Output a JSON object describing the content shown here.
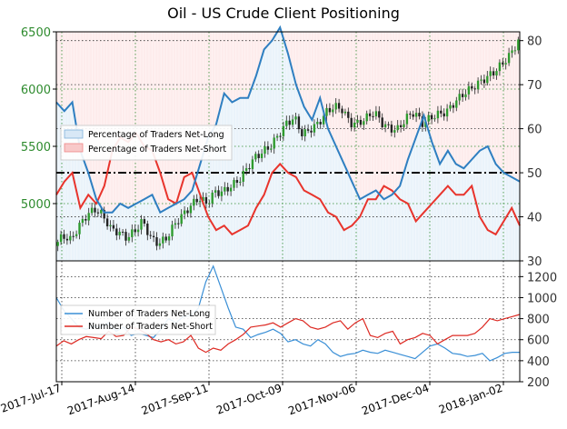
{
  "chart_data": [
    {
      "panel": "top",
      "type": "candlestick+line",
      "title": "Oil - US Crude Client Positioning",
      "y_left": {
        "ticks": [
          5000,
          5500,
          6000,
          6500
        ],
        "range": [
          4500,
          6500
        ],
        "color": "#2e8b2e"
      },
      "y_right": {
        "ticks": [
          30,
          40,
          50,
          60,
          70,
          80
        ],
        "range": [
          30,
          82
        ],
        "color": "#333333"
      },
      "reference_line": {
        "value": 50,
        "style": "dash-dot"
      },
      "legend": {
        "position": "left-center",
        "entries": [
          "Percentage of Traders Net-Long",
          "Percentage of Traders Net-Short"
        ]
      },
      "series": [
        {
          "name": "Percentage of Traders Net-Long",
          "color": "#2f7fc1",
          "values": [
            66,
            64,
            66,
            55,
            50,
            44,
            41,
            41,
            43,
            42,
            43,
            44,
            45,
            41,
            42,
            43,
            44,
            46,
            52,
            58,
            61,
            68,
            66,
            67,
            67,
            72,
            78,
            80,
            83,
            77,
            70,
            65,
            62,
            67,
            60,
            56,
            52,
            48,
            44,
            45,
            46,
            44,
            45,
            47,
            53,
            58,
            63,
            57,
            52,
            55,
            52,
            51,
            53,
            55,
            56,
            52,
            50,
            49,
            48
          ]
        },
        {
          "name": "Percentage of Traders Net-Short",
          "color": "#e8342c",
          "values": [
            45,
            48,
            50,
            42,
            45,
            43,
            47,
            55,
            58,
            57,
            59,
            56,
            55,
            50,
            44,
            43,
            49,
            50,
            45,
            40,
            37,
            38,
            36,
            37,
            38,
            42,
            45,
            50,
            52,
            50,
            49,
            46,
            45,
            44,
            41,
            40,
            37,
            38,
            40,
            44,
            44,
            47,
            46,
            44,
            43,
            39,
            41,
            43,
            45,
            47,
            45,
            45,
            47,
            40,
            37,
            36,
            39,
            42,
            38
          ]
        },
        {
          "name": "US Crude price",
          "values": [
            4630,
            4720,
            4680,
            4800,
            4900,
            4950,
            4900,
            4780,
            4750,
            4700,
            4760,
            4850,
            4700,
            4650,
            4700,
            4820,
            4900,
            4980,
            5050,
            5000,
            5100,
            5100,
            5150,
            5200,
            5300,
            5400,
            5450,
            5500,
            5600,
            5700,
            5750,
            5600,
            5650,
            5700,
            5800,
            5850,
            5820,
            5700,
            5700,
            5750,
            5800,
            5700,
            5650,
            5650,
            5750,
            5800,
            5700,
            5750,
            5780,
            5800,
            5880,
            5950,
            6000,
            6050,
            6100,
            6150,
            6220,
            6300,
            6420
          ]
        }
      ],
      "x_ticks": [
        "2017-Jul-17",
        "2017-Aug-14",
        "2017-Sep-11",
        "2017-Oct-09",
        "2017-Nov-06",
        "2017-Dec-04",
        "2018-Jan-02"
      ]
    },
    {
      "panel": "bottom",
      "type": "line",
      "y_right": {
        "ticks": [
          200,
          400,
          600,
          800,
          1000,
          1200
        ],
        "range": [
          200,
          1350
        ]
      },
      "legend": {
        "position": "upper-left",
        "entries": [
          "Number of Traders Net-Long",
          "Number of Traders Net-Short"
        ]
      },
      "series": [
        {
          "name": "Number of Traders Net-Long",
          "color": "#3a8fd6",
          "values": [
            1000,
            880,
            800,
            720,
            700,
            730,
            720,
            760,
            680,
            720,
            640,
            660,
            640,
            620,
            700,
            800,
            760,
            820,
            830,
            900,
            1150,
            1300,
            1100,
            900,
            720,
            700,
            620,
            650,
            670,
            700,
            660,
            580,
            600,
            560,
            540,
            600,
            560,
            480,
            440,
            460,
            470,
            500,
            480,
            470,
            500,
            480,
            460,
            440,
            420,
            480,
            540,
            560,
            520,
            470,
            460,
            440,
            450,
            470,
            400,
            430,
            470,
            480,
            480
          ]
        },
        {
          "name": "Number of Traders Net-Short",
          "color": "#dd2a23",
          "values": [
            540,
            590,
            560,
            600,
            630,
            620,
            610,
            680,
            630,
            640,
            720,
            700,
            660,
            600,
            580,
            600,
            560,
            580,
            640,
            520,
            480,
            520,
            500,
            560,
            600,
            650,
            720,
            730,
            740,
            760,
            720,
            760,
            800,
            780,
            720,
            700,
            720,
            760,
            780,
            700,
            760,
            800,
            640,
            620,
            660,
            680,
            560,
            600,
            620,
            660,
            640,
            560,
            600,
            640,
            640,
            640,
            660,
            720,
            800,
            780,
            800,
            820,
            840
          ]
        }
      ],
      "x_ticks": [
        "2017-Jul-17",
        "2017-Aug-14",
        "2017-Sep-11",
        "2017-Oct-09",
        "2017-Nov-06",
        "2017-Dec-04",
        "2018-Jan-02"
      ]
    }
  ]
}
